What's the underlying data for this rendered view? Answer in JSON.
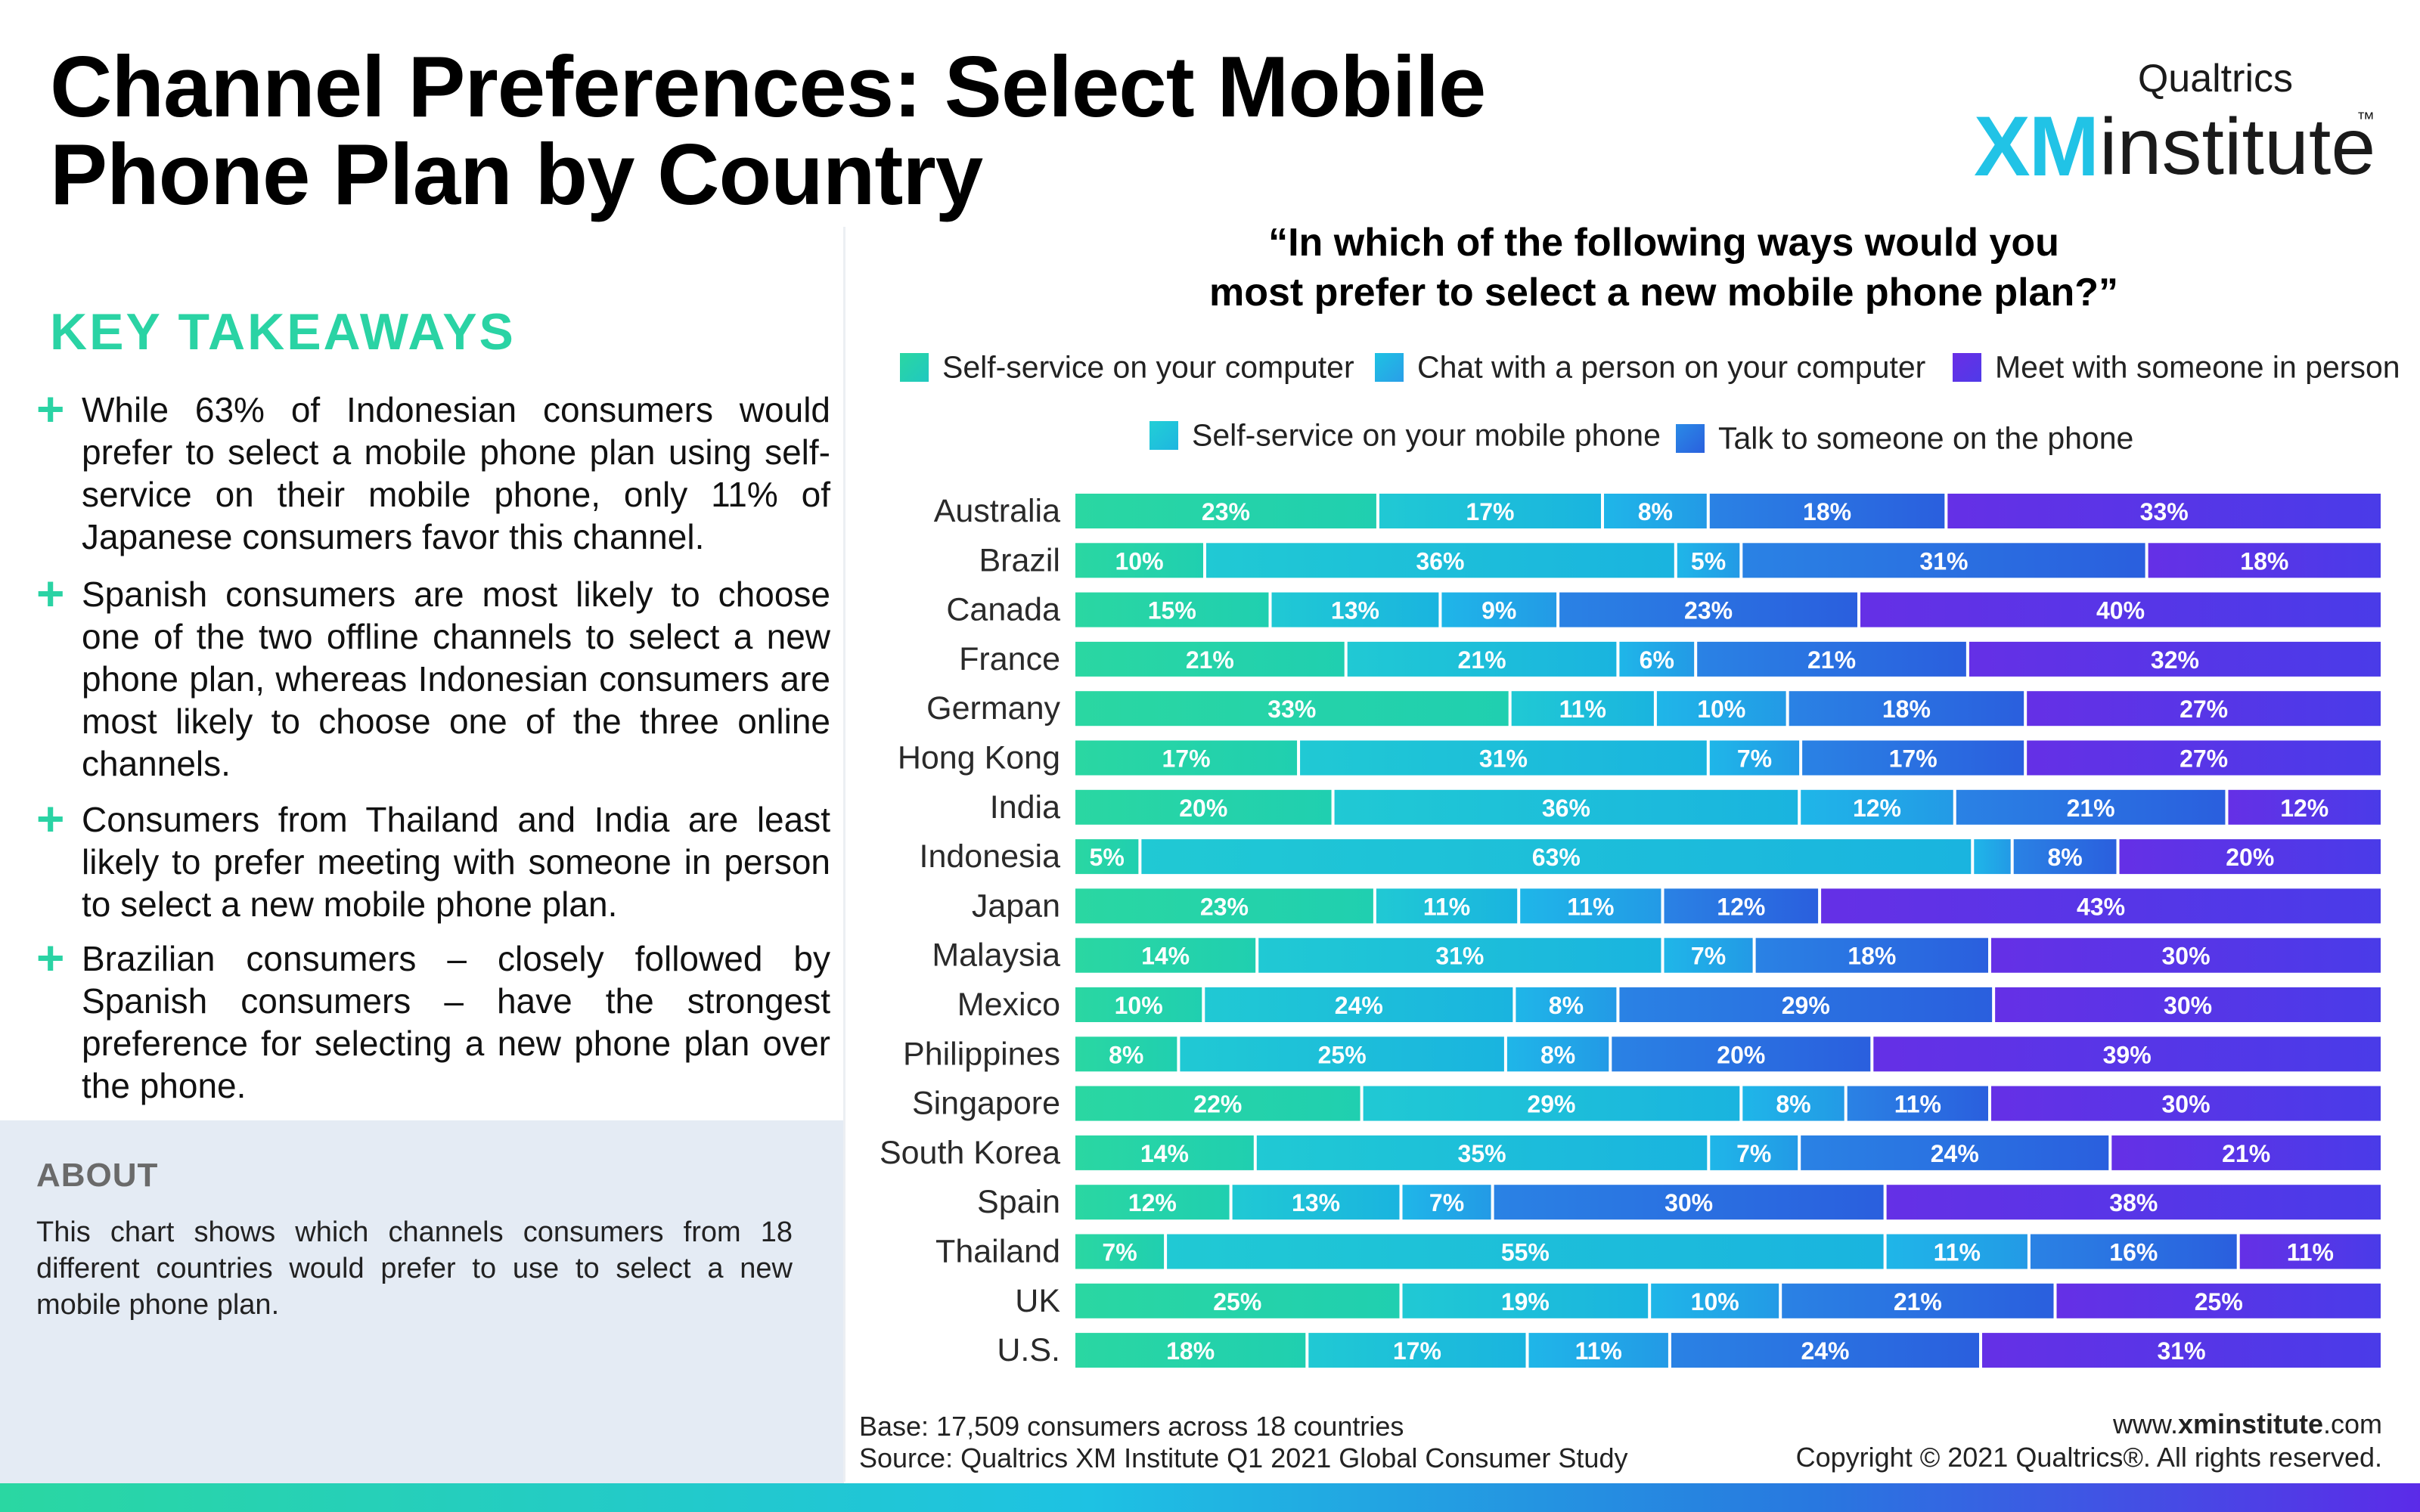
{
  "header": {
    "title": "Channel Preferences: Select Mobile Phone Plan by Country",
    "logo_brand": "Qualtrics",
    "logo_xm": "XM",
    "logo_institute": "institute",
    "logo_tm": "™"
  },
  "takeaways": {
    "title": "KEY TAKEAWAYS",
    "items": [
      "While 63% of Indonesian consumers would prefer to select a mobile phone plan using self-service on their mobile phone, only 11% of Japanese consumers favor this channel.",
      "Spanish consumers are most likely to choose one of the two offline channels to select a new phone plan, whereas Indonesian consumers are most likely to choose one of the three online channels.",
      "Consumers from Thailand and India are least likely to prefer meeting with someone in person to select a new mobile phone plan.",
      "Brazilian consumers – closely followed by Spanish consumers – have the strongest preference for selecting a new phone plan over the phone."
    ]
  },
  "about": {
    "title": "ABOUT",
    "text": "This chart shows which channels consumers from 18 different countries would prefer to use to select a new mobile phone plan."
  },
  "footer": {
    "base": "Base: 17,509 consumers across 18 countries",
    "source": "Source: Qualtrics XM Institute Q1 2021 Global Consumer Study",
    "site_prefix": "www.",
    "site_bold": "xminstitute",
    "site_suffix": ".com",
    "copyright": "Copyright © 2021 Qualtrics®. All rights reserved."
  },
  "chart_data": {
    "type": "bar",
    "orientation": "horizontal",
    "stacked": true,
    "title": "“In which of the following ways would you most prefer to select a new mobile phone plan?”",
    "title_line1": "“In which of the following ways would you",
    "title_line2": "most prefer to select a new mobile phone plan?”",
    "legend_position": "top",
    "grid": false,
    "categories": [
      "Australia",
      "Brazil",
      "Canada",
      "France",
      "Germany",
      "Hong Kong",
      "India",
      "Indonesia",
      "Japan",
      "Malaysia",
      "Mexico",
      "Philippines",
      "Singapore",
      "South Korea",
      "Spain",
      "Thailand",
      "UK",
      "U.S."
    ],
    "series": [
      {
        "name": "Self-service on your computer",
        "color": "#2ad7a2",
        "values": [
          23,
          10,
          15,
          21,
          33,
          17,
          20,
          5,
          23,
          14,
          10,
          8,
          22,
          14,
          12,
          7,
          25,
          18
        ]
      },
      {
        "name": "Self-service on your mobile phone",
        "color": "#1ec2d9",
        "values": [
          17,
          36,
          13,
          21,
          11,
          31,
          36,
          63,
          11,
          31,
          24,
          25,
          29,
          35,
          13,
          55,
          19,
          17
        ]
      },
      {
        "name": "Chat with a person on your computer",
        "color": "#22abe8",
        "values": [
          8,
          5,
          9,
          6,
          10,
          7,
          12,
          3,
          11,
          7,
          8,
          8,
          8,
          7,
          7,
          11,
          10,
          11
        ]
      },
      {
        "name": "Talk to someone on the phone",
        "color": "#2a6ee0",
        "values": [
          18,
          31,
          23,
          21,
          18,
          17,
          21,
          8,
          12,
          18,
          29,
          20,
          11,
          24,
          30,
          16,
          21,
          24
        ]
      },
      {
        "name": "Meet with someone in person",
        "color": "#5a33e6",
        "values": [
          33,
          18,
          40,
          32,
          27,
          27,
          12,
          20,
          43,
          30,
          30,
          39,
          30,
          21,
          38,
          11,
          25,
          31
        ]
      }
    ],
    "labels": [
      [
        "23%",
        "17%",
        "8%",
        "18%",
        "33%"
      ],
      [
        "10%",
        "36%",
        "5%",
        "31%",
        "18%"
      ],
      [
        "15%",
        "13%",
        "9%",
        "23%",
        "40%"
      ],
      [
        "21%",
        "21%",
        "6%",
        "21%",
        "32%"
      ],
      [
        "33%",
        "11%",
        "10%",
        "18%",
        "27%"
      ],
      [
        "17%",
        "31%",
        "7%",
        "17%",
        "27%"
      ],
      [
        "20%",
        "36%",
        "12%",
        "21%",
        "12%"
      ],
      [
        "5%",
        "63%",
        "",
        "8%",
        "20%"
      ],
      [
        "23%",
        "11%",
        "11%",
        "12%",
        "43%"
      ],
      [
        "14%",
        "31%",
        "7%",
        "18%",
        "30%"
      ],
      [
        "10%",
        "24%",
        "8%",
        "29%",
        "30%"
      ],
      [
        "8%",
        "25%",
        "8%",
        "20%",
        "39%"
      ],
      [
        "22%",
        "29%",
        "8%",
        "11%",
        "30%"
      ],
      [
        "14%",
        "35%",
        "7%",
        "24%",
        "21%"
      ],
      [
        "12%",
        "13%",
        "7%",
        "30%",
        "38%"
      ],
      [
        "7%",
        "55%",
        "11%",
        "16%",
        "11%"
      ],
      [
        "25%",
        "19%",
        "10%",
        "21%",
        "25%"
      ],
      [
        "18%",
        "17%",
        "11%",
        "24%",
        "31%"
      ]
    ]
  }
}
